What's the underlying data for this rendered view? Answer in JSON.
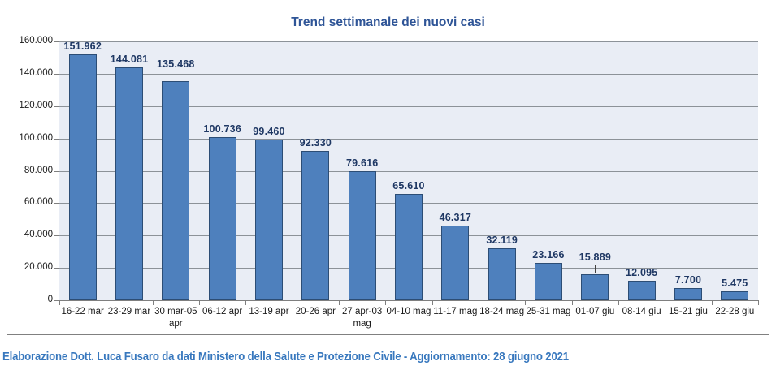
{
  "chart_data": {
    "type": "bar",
    "title": "Trend settimanale dei nuovi casi",
    "categories": [
      "16-22 mar",
      "23-29 mar",
      "30 mar-05 apr",
      "06-12 apr",
      "13-19 apr",
      "20-26 apr",
      "27 apr-03 mag",
      "04-10 mag",
      "11-17 mag",
      "18-24 mag",
      "25-31 mag",
      "01-07 giu",
      "08-14 giu",
      "15-21 giu",
      "22-28 giu"
    ],
    "values": [
      151962,
      144081,
      135468,
      100736,
      99460,
      92330,
      79616,
      65610,
      46317,
      32119,
      23166,
      15889,
      12095,
      7700,
      5475
    ],
    "value_labels": [
      "151.962",
      "144.081",
      "135.468",
      "100.736",
      "99.460",
      "92.330",
      "79.616",
      "65.610",
      "46.317",
      "32.119",
      "23.166",
      "15.889",
      "12.095",
      "7.700",
      "5.475"
    ],
    "y_ticks": [
      "0",
      "20.000",
      "40.000",
      "60.000",
      "80.000",
      "100.000",
      "120.000",
      "140.000",
      "160.000"
    ],
    "ylim": [
      0,
      160000
    ],
    "xlabel": "",
    "ylabel": "",
    "grid": "horizontal",
    "legend": "none",
    "raised_label_indices": [
      2,
      11
    ],
    "colors": {
      "bar_fill": "#4E80BD",
      "bar_border": "#2C4D75",
      "plot_bg": "#E9EDF5",
      "gridline": "#8C9298",
      "axis": "#7F7F7F",
      "title_text": "#2F5597",
      "data_label": "#1F3864",
      "tick_label": "#1A1A1A",
      "frame_border": "#808080",
      "footer_color": "#3878BE"
    }
  },
  "footer": {
    "text": "Elaborazione Dott. Luca Fusaro da dati Ministero della Salute e Protezione Civile - Aggiornamento: 28 giugno 2021"
  }
}
